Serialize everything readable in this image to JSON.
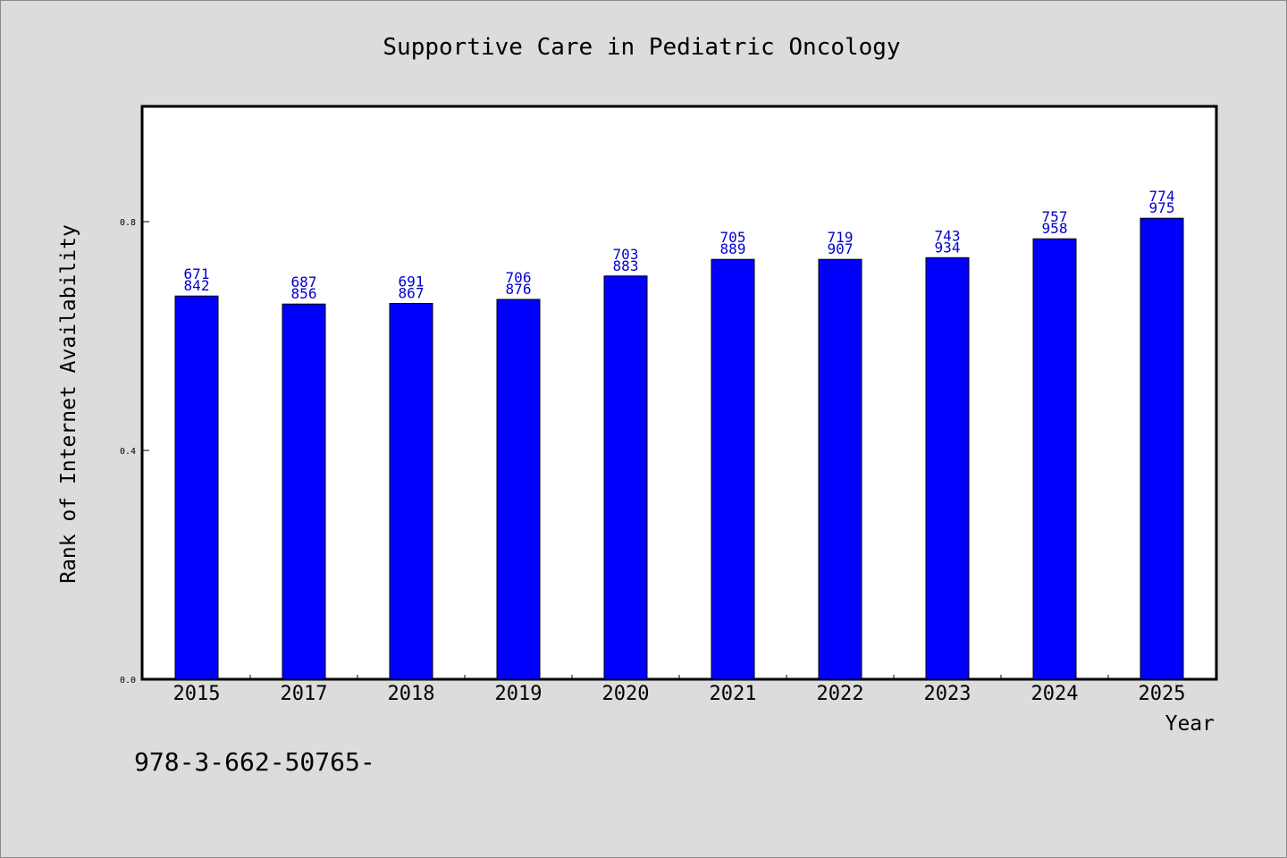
{
  "chart_data": {
    "type": "bar",
    "title": "Supportive Care in Pediatric Oncology",
    "xlabel": "Year",
    "ylabel": "Rank of Internet Availability",
    "categories": [
      "2015",
      "2017",
      "2018",
      "2019",
      "2020",
      "2021",
      "2022",
      "2023",
      "2024",
      "2025"
    ],
    "series": [
      {
        "values": [
          0.67,
          0.656,
          0.657,
          0.664,
          0.705,
          0.734,
          0.734,
          0.737,
          0.77,
          0.806
        ],
        "labels_top": [
          "671",
          "687",
          "691",
          "706",
          "703",
          "705",
          "719",
          "743",
          "757",
          "774"
        ],
        "labels_bottom": [
          "842",
          "856",
          "867",
          "876",
          "883",
          "889",
          "907",
          "934",
          "958",
          "975"
        ],
        "color": "#0000ff"
      }
    ],
    "ylim": [
      0,
      1.0
    ],
    "yticks": [
      0.0,
      0.4,
      0.8
    ],
    "ytick_labels": [
      "0.0",
      "0.4",
      "0.8"
    ],
    "grid": false,
    "legend": "none"
  },
  "footer_text": "978-3-662-50765-"
}
